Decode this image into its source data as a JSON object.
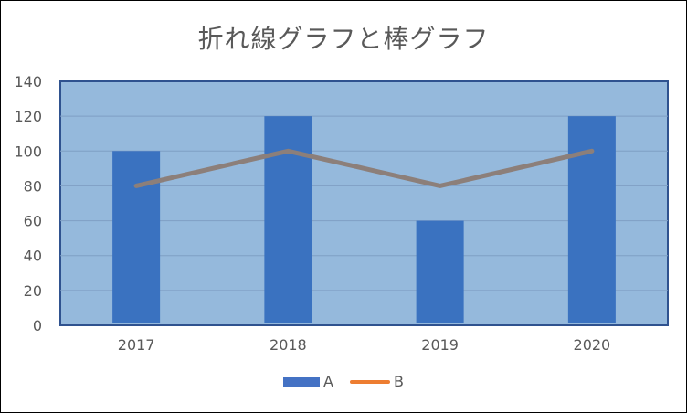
{
  "chart_data": {
    "type": "bar+line",
    "title": "折れ線グラフと棒グラフ",
    "categories": [
      "2017",
      "2018",
      "2019",
      "2020"
    ],
    "series": [
      {
        "name": "A",
        "type": "bar",
        "values": [
          100,
          120,
          60,
          120
        ],
        "color": "#4472c4"
      },
      {
        "name": "B",
        "type": "line",
        "values": [
          80,
          100,
          80,
          100
        ],
        "color": "#ed7d31",
        "plot_color": "#8c7f7a"
      }
    ],
    "ylim": [
      0,
      140
    ],
    "yticks": [
      0,
      20,
      40,
      60,
      80,
      100,
      120,
      140
    ],
    "grid": true,
    "legend": "bottom",
    "colors": {
      "plot_background": "#95b9dc",
      "plot_border": "#2f528f",
      "gridline": "#7f9fc4",
      "bar": "#3a72c0",
      "line": "#8c7f7a"
    }
  }
}
